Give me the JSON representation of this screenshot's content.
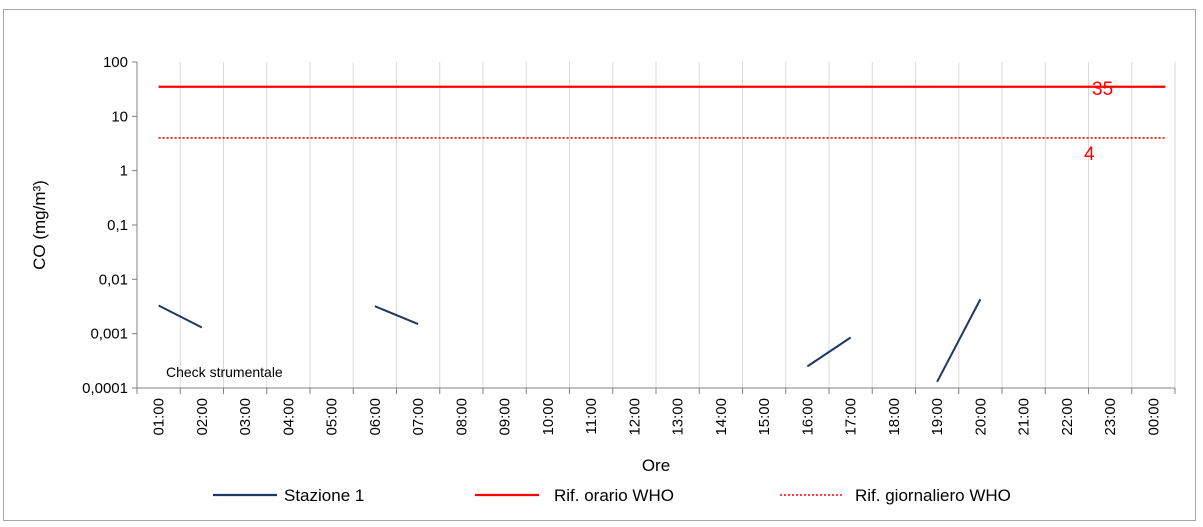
{
  "chart_data": {
    "type": "line",
    "xlabel": "Ore",
    "ylabel": "CO (mg/m³)",
    "y_scale": "log",
    "ylim": [
      0.0001,
      100
    ],
    "y_ticks": [
      "0,0001",
      "0,001",
      "0,01",
      "0,1",
      "1",
      "10",
      "100"
    ],
    "categories": [
      "01:00",
      "02:00",
      "03:00",
      "04:00",
      "05:00",
      "06:00",
      "07:00",
      "08:00",
      "09:00",
      "10:00",
      "11:00",
      "12:00",
      "13:00",
      "14:00",
      "15:00",
      "16:00",
      "17:00",
      "18:00",
      "19:00",
      "20:00",
      "21:00",
      "22:00",
      "23:00",
      "00:00"
    ],
    "grid": "vertical",
    "legend_position": "bottom",
    "series": [
      {
        "name": "Stazione 1",
        "color": "#1f3864",
        "style": "solid",
        "values": [
          0.0033,
          0.0013,
          null,
          null,
          null,
          0.0032,
          0.0015,
          null,
          null,
          null,
          null,
          null,
          null,
          null,
          null,
          0.00025,
          0.00085,
          null,
          0.00013,
          0.0043,
          null,
          null,
          null,
          null
        ]
      },
      {
        "name": "Rif. orario WHO",
        "color": "#ff0000",
        "style": "solid",
        "value": 35
      },
      {
        "name": "Rif. giornaliero WHO",
        "color": "#ff0000",
        "style": "dotted",
        "value": 4
      }
    ],
    "annotations": [
      {
        "text": "35",
        "color": "#ff0000"
      },
      {
        "text": "4",
        "color": "#ff0000"
      },
      {
        "text": "Check strumentale",
        "color": "#000000"
      }
    ]
  }
}
